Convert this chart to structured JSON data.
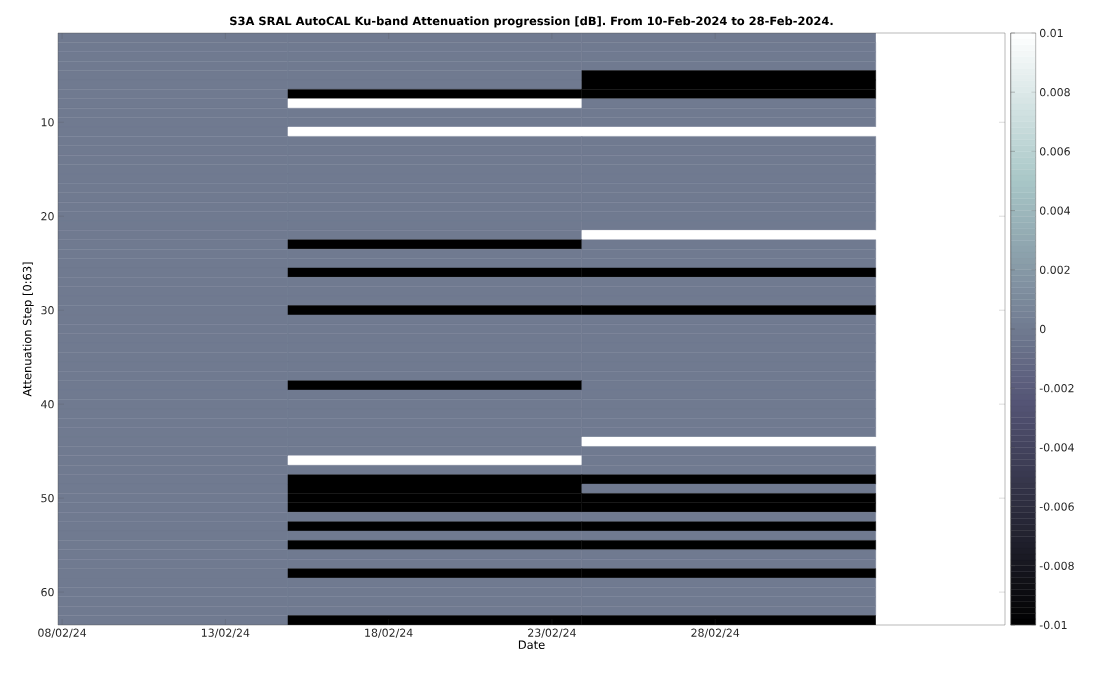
{
  "chart_data": {
    "type": "heatmap",
    "title": "S3A SRAL AutoCAL Ku-band Attenuation progression [dB]. From 10-Feb-2024 to 28-Feb-2024.",
    "xlabel": "Date",
    "ylabel": "Attenuation Step [0:63]",
    "x": [
      "2024-02-10T10:00",
      "2024-02-19T10:00",
      "2024-02-28T10:00"
    ],
    "y": [
      1,
      2,
      3,
      4,
      5,
      6,
      7,
      8,
      9,
      10,
      11,
      12,
      13,
      14,
      15,
      16,
      17,
      18,
      19,
      20,
      21,
      22,
      23,
      24,
      25,
      26,
      27,
      28,
      29,
      30,
      31,
      32,
      33,
      34,
      35,
      36,
      37,
      38,
      39,
      40,
      41,
      42,
      43,
      44,
      45,
      46,
      47,
      48,
      49,
      50,
      51,
      52,
      53,
      54,
      55,
      56,
      57,
      58,
      59,
      60,
      61,
      62,
      63
    ],
    "xlim": [
      "2024-02-07T21:00",
      "2024-03-07T21:00"
    ],
    "xticks": [
      {
        "value": "2024-02-08",
        "label": "08/02/24"
      },
      {
        "value": "2024-02-13",
        "label": "13/02/24"
      },
      {
        "value": "2024-02-18",
        "label": "18/02/24"
      },
      {
        "value": "2024-02-23",
        "label": "23/02/24"
      },
      {
        "value": "2024-02-28",
        "label": "28/02/24"
      }
    ],
    "ylim": [
      63.5,
      0.5
    ],
    "yticks": [
      10,
      20,
      30,
      40,
      50,
      60
    ],
    "clim": [
      -0.01,
      0.01
    ],
    "cticks": [
      -0.01,
      -0.008,
      -0.006,
      -0.004,
      -0.002,
      0,
      0.002,
      0.004,
      0.006,
      0.008,
      0.01
    ],
    "cells": [
      [
        0,
        0,
        0
      ],
      [
        0,
        0,
        0
      ],
      [
        0,
        0,
        0
      ],
      [
        0,
        0,
        0
      ],
      [
        0,
        0,
        -0.01
      ],
      [
        0,
        0,
        -0.01
      ],
      [
        0,
        -0.01,
        -0.01
      ],
      [
        0,
        0.01,
        0
      ],
      [
        0,
        0,
        0
      ],
      [
        0,
        0,
        0
      ],
      [
        0,
        0.01,
        0.01
      ],
      [
        0,
        0,
        0
      ],
      [
        0,
        0,
        0
      ],
      [
        0,
        0,
        0
      ],
      [
        0,
        0,
        0
      ],
      [
        0,
        0,
        0
      ],
      [
        0,
        0,
        0
      ],
      [
        0,
        0,
        0
      ],
      [
        0,
        0,
        0
      ],
      [
        0,
        0,
        0
      ],
      [
        0,
        0,
        0
      ],
      [
        0,
        0,
        0.01
      ],
      [
        0,
        -0.01,
        0
      ],
      [
        0,
        0,
        0
      ],
      [
        0,
        0,
        0
      ],
      [
        0,
        -0.01,
        -0.01
      ],
      [
        0,
        0,
        0
      ],
      [
        0,
        0,
        0
      ],
      [
        0,
        0,
        0
      ],
      [
        0,
        -0.01,
        -0.01
      ],
      [
        0,
        0,
        0
      ],
      [
        0,
        0,
        0
      ],
      [
        0,
        0,
        0
      ],
      [
        0,
        0,
        0
      ],
      [
        0,
        0,
        0
      ],
      [
        0,
        0,
        0
      ],
      [
        0,
        0,
        0
      ],
      [
        0,
        -0.01,
        0
      ],
      [
        0,
        0,
        0
      ],
      [
        0,
        0,
        0
      ],
      [
        0,
        0,
        0
      ],
      [
        0,
        0,
        0
      ],
      [
        0,
        0,
        0
      ],
      [
        0,
        0,
        0.01
      ],
      [
        0,
        0,
        0
      ],
      [
        0,
        0.01,
        0
      ],
      [
        0,
        0,
        0
      ],
      [
        0,
        -0.01,
        -0.01
      ],
      [
        0,
        -0.01,
        0
      ],
      [
        0,
        -0.01,
        -0.01
      ],
      [
        0,
        -0.01,
        -0.01
      ],
      [
        0,
        0,
        0
      ],
      [
        0,
        -0.01,
        -0.01
      ],
      [
        0,
        0,
        0
      ],
      [
        0,
        -0.01,
        -0.01
      ],
      [
        0,
        0,
        0
      ],
      [
        0,
        0,
        0
      ],
      [
        0,
        -0.01,
        -0.01
      ],
      [
        0,
        0,
        0
      ],
      [
        0,
        0,
        0
      ],
      [
        0,
        0,
        0
      ],
      [
        0,
        0,
        0
      ],
      [
        0,
        -0.01,
        -0.01
      ]
    ]
  }
}
